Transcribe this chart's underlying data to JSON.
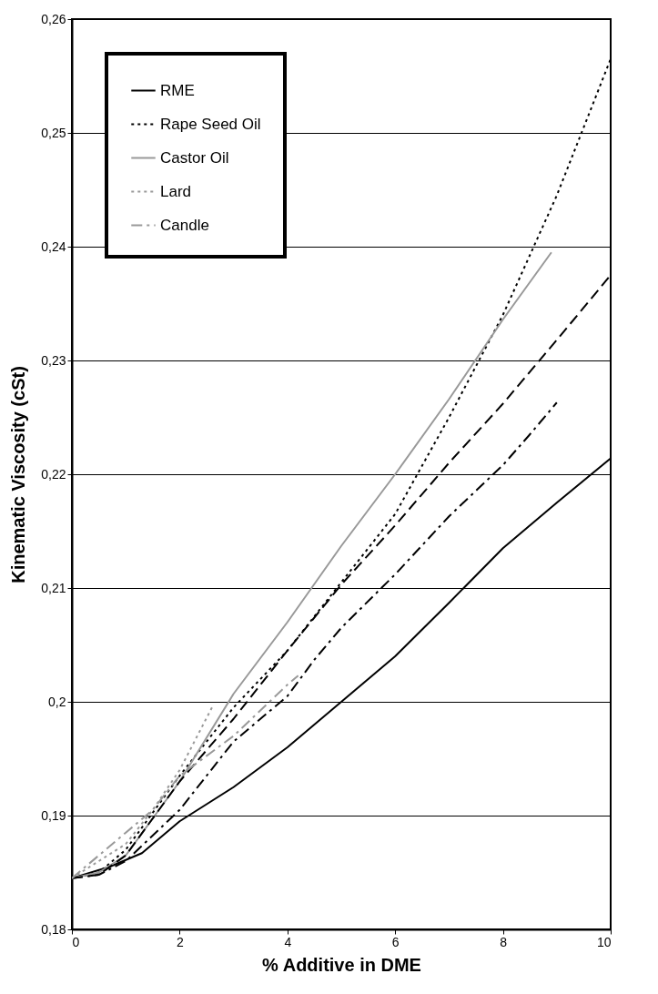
{
  "chart_data": {
    "type": "line",
    "xlabel": "% Additive in DME",
    "ylabel": "Kinematic Viscosity (cSt)",
    "xlim": [
      0,
      10
    ],
    "xticks": [
      0,
      2,
      4,
      6,
      8,
      10
    ],
    "ylim": [
      0.18,
      0.26
    ],
    "yticks": [
      {
        "value": 0.18,
        "label": "0,18"
      },
      {
        "value": 0.19,
        "label": "0,19"
      },
      {
        "value": 0.2,
        "label": "0,2"
      },
      {
        "value": 0.21,
        "label": "0,21"
      },
      {
        "value": 0.22,
        "label": "0,22"
      },
      {
        "value": 0.23,
        "label": "0,23"
      },
      {
        "value": 0.24,
        "label": "0,24"
      },
      {
        "value": 0.25,
        "label": "0,25"
      },
      {
        "value": 0.26,
        "label": "0,26"
      }
    ],
    "grid": "y",
    "legend": "top left",
    "series": [
      {
        "name": "RME",
        "color": "#000000",
        "line_style": "solid",
        "x": [
          0,
          0.7,
          1.3,
          2,
          3,
          4,
          5,
          6,
          7,
          8,
          9,
          10
        ],
        "values": [
          0.1845,
          0.1855,
          0.1867,
          0.1895,
          0.1925,
          0.196,
          0.2,
          0.204,
          0.2087,
          0.2135,
          0.2175,
          0.2214
        ]
      },
      {
        "name": "Rape Seed Oil",
        "color": "#000000",
        "line_style": "dotted",
        "x": [
          0,
          0.5,
          1,
          2,
          3,
          4,
          5,
          6,
          7,
          8,
          9,
          10
        ],
        "values": [
          0.1845,
          0.185,
          0.187,
          0.1935,
          0.1995,
          0.2045,
          0.2105,
          0.2165,
          0.225,
          0.234,
          0.2445,
          0.2565
        ]
      },
      {
        "color": "#000000",
        "line_style": "dashdot",
        "x": [
          0,
          0.5,
          1,
          2,
          3,
          4,
          4.5,
          5,
          6,
          7,
          8,
          8.5,
          9
        ],
        "values": [
          0.1845,
          0.1848,
          0.186,
          0.1905,
          0.1965,
          0.2005,
          0.2037,
          0.2065,
          0.2112,
          0.2163,
          0.2208,
          0.2235,
          0.2263
        ]
      },
      {
        "name": "Castor Oil",
        "color": "#999999",
        "line_style": "solid",
        "x": [
          0,
          0.5,
          1,
          2,
          3,
          4,
          5,
          6,
          7,
          8,
          8.9
        ],
        "values": [
          0.1845,
          0.185,
          0.1865,
          0.193,
          0.2007,
          0.207,
          0.2137,
          0.22,
          0.2266,
          0.2336,
          0.2395
        ]
      },
      {
        "color": "#000000",
        "line_style": "dashed",
        "x": [
          0,
          0.5,
          1,
          2,
          3,
          4,
          5,
          6,
          7,
          8,
          9,
          10
        ],
        "values": [
          0.1845,
          0.1848,
          0.1865,
          0.193,
          0.1985,
          0.2045,
          0.2103,
          0.2155,
          0.221,
          0.2262,
          0.2318,
          0.2375
        ]
      },
      {
        "name": "Lard",
        "color": "#999999",
        "line_style": "dotted",
        "x": [
          0,
          0.5,
          1,
          1.5,
          2,
          2.6
        ],
        "values": [
          0.1845,
          0.186,
          0.1875,
          0.1905,
          0.194,
          0.1995
        ]
      },
      {
        "name": "Candle",
        "color": "#999999",
        "line_style": "dashdot",
        "x": [
          0,
          0.5,
          1,
          1.5,
          2,
          3,
          4,
          4.2
        ],
        "values": [
          0.1845,
          0.1865,
          0.1885,
          0.1905,
          0.1935,
          0.197,
          0.2015,
          0.2023
        ]
      }
    ]
  }
}
